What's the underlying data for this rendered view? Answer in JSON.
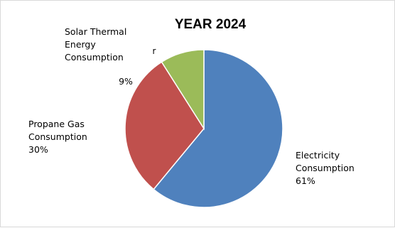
{
  "chart_data": {
    "type": "pie",
    "title": "YEAR 2024",
    "slices": [
      {
        "label_lines": [
          "Electricity",
          "Consumption"
        ],
        "percent_label": "61%",
        "value": 61,
        "color": "#4f81bd"
      },
      {
        "label_lines": [
          "Propane Gas",
          "Consumption"
        ],
        "percent_label": "30%",
        "value": 30,
        "color": "#c0504d"
      },
      {
        "label_lines": [
          "Solar Thermal",
          "Energy",
          "Consumption"
        ],
        "percent_label": "9%",
        "value": 9,
        "color": "#9bbb59"
      }
    ],
    "stray_text": "r",
    "start_angle_deg": 0,
    "direction": "clockwise",
    "legend": "none",
    "slice_border_color": "#ffffff"
  }
}
